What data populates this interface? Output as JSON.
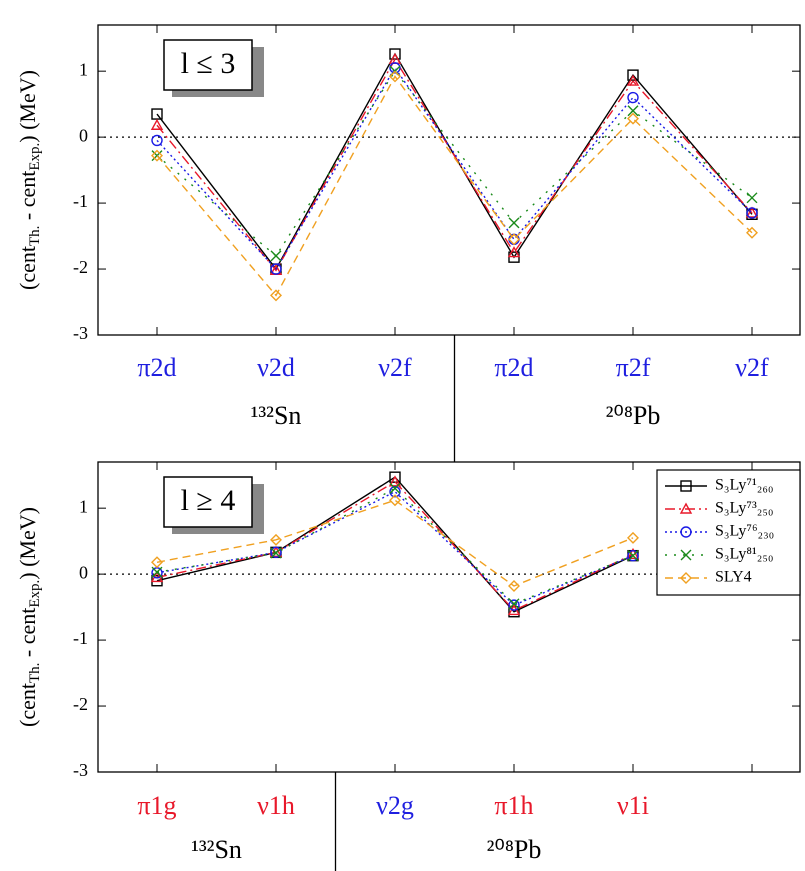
{
  "chart_data": [
    {
      "type": "line",
      "annotation": "l ≤ 3",
      "y_label": [
        "(cent",
        "Th.",
        " - cent",
        "Exp.",
        ") (MeV)"
      ],
      "categories": [
        "π2d",
        "ν2d",
        "ν2f",
        "π2d",
        "π2f",
        "ν2f"
      ],
      "category_colors": [
        "#1f1fe0",
        "#1f1fe0",
        "#1f1fe0",
        "#1f1fe0",
        "#1f1fe0",
        "#1f1fe0"
      ],
      "groups": [
        "¹³²Sn",
        "²⁰⁸Pb"
      ],
      "ylim": [
        -3,
        1.7
      ],
      "yticks": [
        -3,
        -2,
        -1,
        0,
        1
      ],
      "legend": false,
      "series": [
        {
          "color": "#000000",
          "marker": "square",
          "linestyle": "solid",
          "values": [
            0.35,
            -2.0,
            1.26,
            -1.82,
            0.94,
            -1.17
          ]
        },
        {
          "color": "#e8182a",
          "marker": "triangle",
          "linestyle": "dashdot",
          "values": [
            0.18,
            -2.02,
            1.18,
            -1.75,
            0.85,
            -1.15
          ]
        },
        {
          "color": "#1a1ae6",
          "marker": "circle",
          "linestyle": "dotted",
          "values": [
            -0.05,
            -2.0,
            1.05,
            -1.55,
            0.6,
            -1.15
          ]
        },
        {
          "color": "#1a8a1a",
          "marker": "x",
          "linestyle": "sparse",
          "values": [
            -0.28,
            -1.8,
            1.0,
            -1.3,
            0.4,
            -0.92
          ]
        },
        {
          "color": "#f0a020",
          "marker": "diamond",
          "linestyle": "dashed",
          "values": [
            -0.28,
            -2.4,
            0.92,
            -1.55,
            0.28,
            -1.45
          ]
        }
      ]
    },
    {
      "type": "line",
      "annotation": "l ≥ 4",
      "y_label": [
        "(cent",
        "Th.",
        " - cent",
        "Exp.",
        ") (MeV)"
      ],
      "categories": [
        "π1g",
        "ν1h",
        "ν2g",
        "π1h",
        "ν1i",
        null
      ],
      "category_colors": [
        "#e8182a",
        "#e8182a",
        "#1f1fe0",
        "#e8182a",
        "#e8182a",
        "#000000"
      ],
      "groups": [
        "¹³²Sn",
        "²⁰⁸Pb"
      ],
      "ylim": [
        -3,
        1.7
      ],
      "yticks": [
        -3,
        -2,
        -1,
        0,
        1
      ],
      "legend": "upper right",
      "series": [
        {
          "name": "S₃Ly⁷¹₂₆₀",
          "color": "#000000",
          "marker": "square",
          "linestyle": "solid",
          "values": [
            -0.1,
            0.33,
            1.47,
            -0.57,
            0.28,
            null
          ]
        },
        {
          "name": "S₃Ly⁷³₂₅₀",
          "color": "#e8182a",
          "marker": "triangle",
          "linestyle": "dashdot",
          "values": [
            -0.05,
            0.33,
            1.4,
            -0.55,
            0.3,
            null
          ]
        },
        {
          "name": "S₃Ly⁷⁶₂₃₀",
          "color": "#1a1ae6",
          "marker": "circle",
          "linestyle": "dotted",
          "values": [
            0.02,
            0.33,
            1.25,
            -0.47,
            0.28,
            null
          ]
        },
        {
          "name": "S₃Ly⁸¹₂₅₀",
          "color": "#1a8a1a",
          "marker": "x",
          "linestyle": "sparse",
          "values": [
            0.03,
            0.32,
            1.3,
            -0.45,
            0.28,
            null
          ]
        },
        {
          "name": "SLY4",
          "color": "#f0a020",
          "marker": "diamond",
          "linestyle": "dashed",
          "values": [
            0.18,
            0.52,
            1.12,
            -0.18,
            0.55,
            null
          ]
        }
      ]
    }
  ]
}
